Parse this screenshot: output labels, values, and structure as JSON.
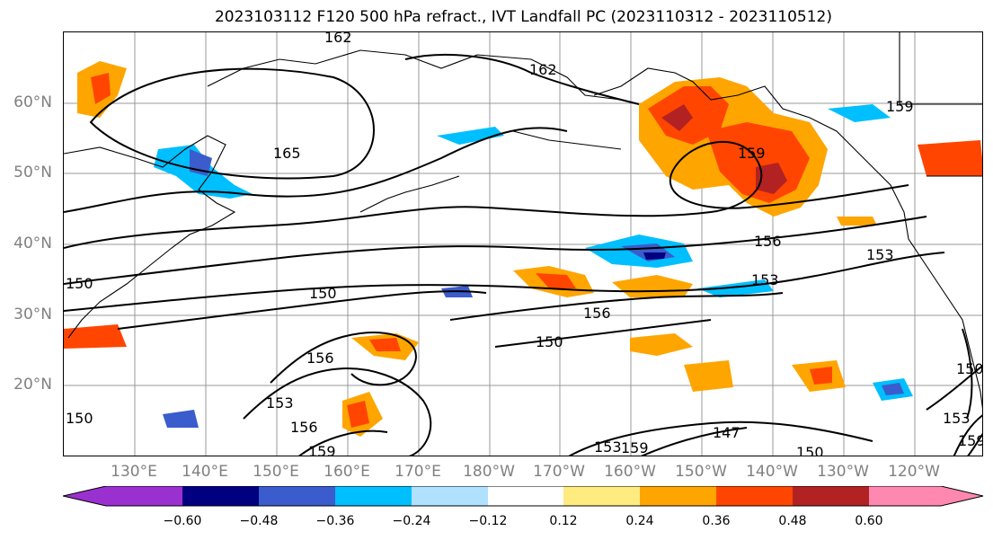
{
  "title": "2023103112 F120 500 hPa refract., IVT Landfall PC (2023110312 - 2023110512)",
  "lat_labels": [
    "60°N",
    "50°N",
    "40°N",
    "30°N",
    "20°N"
  ],
  "lon_labels": [
    "130°E",
    "140°E",
    "150°E",
    "160°E",
    "170°E",
    "180°W",
    "170°W",
    "160°W",
    "150°W",
    "140°W",
    "130°W",
    "120°W"
  ],
  "colorbar": {
    "ticks": [
      "−0.60",
      "−0.48",
      "−0.36",
      "−0.24",
      "−0.12",
      "0.12",
      "0.24",
      "0.36",
      "0.48",
      "0.60"
    ],
    "colors": [
      "#9b30d0",
      "#000080",
      "#3a5ccc",
      "#00bfff",
      "#b0e2ff",
      "#ffffff",
      "#ffeb80",
      "#ffa500",
      "#ff4500",
      "#b22222",
      "#ff88b0"
    ]
  },
  "contour_labels": [
    "162",
    "162",
    "165",
    "159",
    "159",
    "156",
    "153",
    "153",
    "150",
    "156",
    "150",
    "156",
    "153",
    "156",
    "159",
    "147",
    "153",
    "159",
    "150",
    "150",
    "153",
    "159",
    "150",
    "150"
  ]
}
